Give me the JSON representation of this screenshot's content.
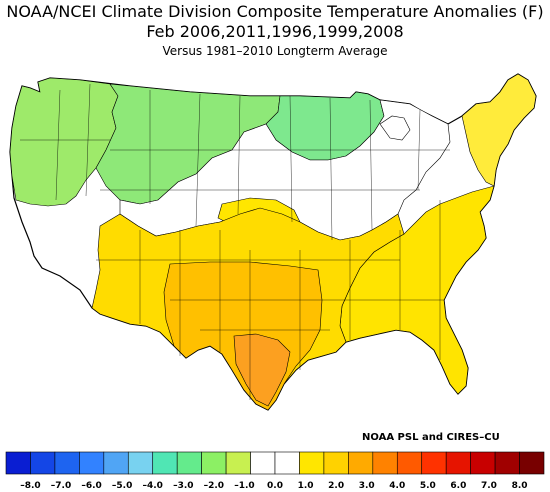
{
  "title": "NOAA/NCEI Climate Division Composite Temperature Anomalies (F)",
  "subtitle": "Feb   2006,2011,1996,1999,2008",
  "note": "Versus 1981–2010 Longterm Average",
  "credit": "NOAA PSL and CIRES–CU",
  "legend": {
    "colors": [
      "#0a1ed2",
      "#1446e6",
      "#1e64f0",
      "#3282ff",
      "#50a5f5",
      "#78d2f0",
      "#50e6b4",
      "#64eb8c",
      "#8cf064",
      "#c8f050",
      "#ffffff",
      "#ffffff",
      "#ffe600",
      "#ffd200",
      "#ffaa00",
      "#ff8200",
      "#ff5a00",
      "#ff3200",
      "#e61400",
      "#c80000",
      "#a00000",
      "#780000"
    ],
    "ticks": [
      "–8.0",
      "–7.0",
      "–6.0",
      "–5.0",
      "–4.0",
      "–3.0",
      "–2.0",
      "–1.0",
      "0.0",
      "1.0",
      "2.0",
      "3.0",
      "4.0",
      "5.0",
      "6.0",
      "7.0",
      "8.0"
    ]
  },
  "regions": [
    {
      "name": "pacific-northwest",
      "color": "#9eea6a"
    },
    {
      "name": "northern-rockies",
      "color": "#8ee878"
    },
    {
      "name": "upper-midwest",
      "color": "#7ee88e"
    },
    {
      "name": "northeast",
      "color": "#ffeb3b"
    },
    {
      "name": "southeast",
      "color": "#ffe400"
    },
    {
      "name": "southern-plains",
      "color": "#ffc000"
    },
    {
      "name": "texas-core",
      "color": "#fca020"
    }
  ]
}
